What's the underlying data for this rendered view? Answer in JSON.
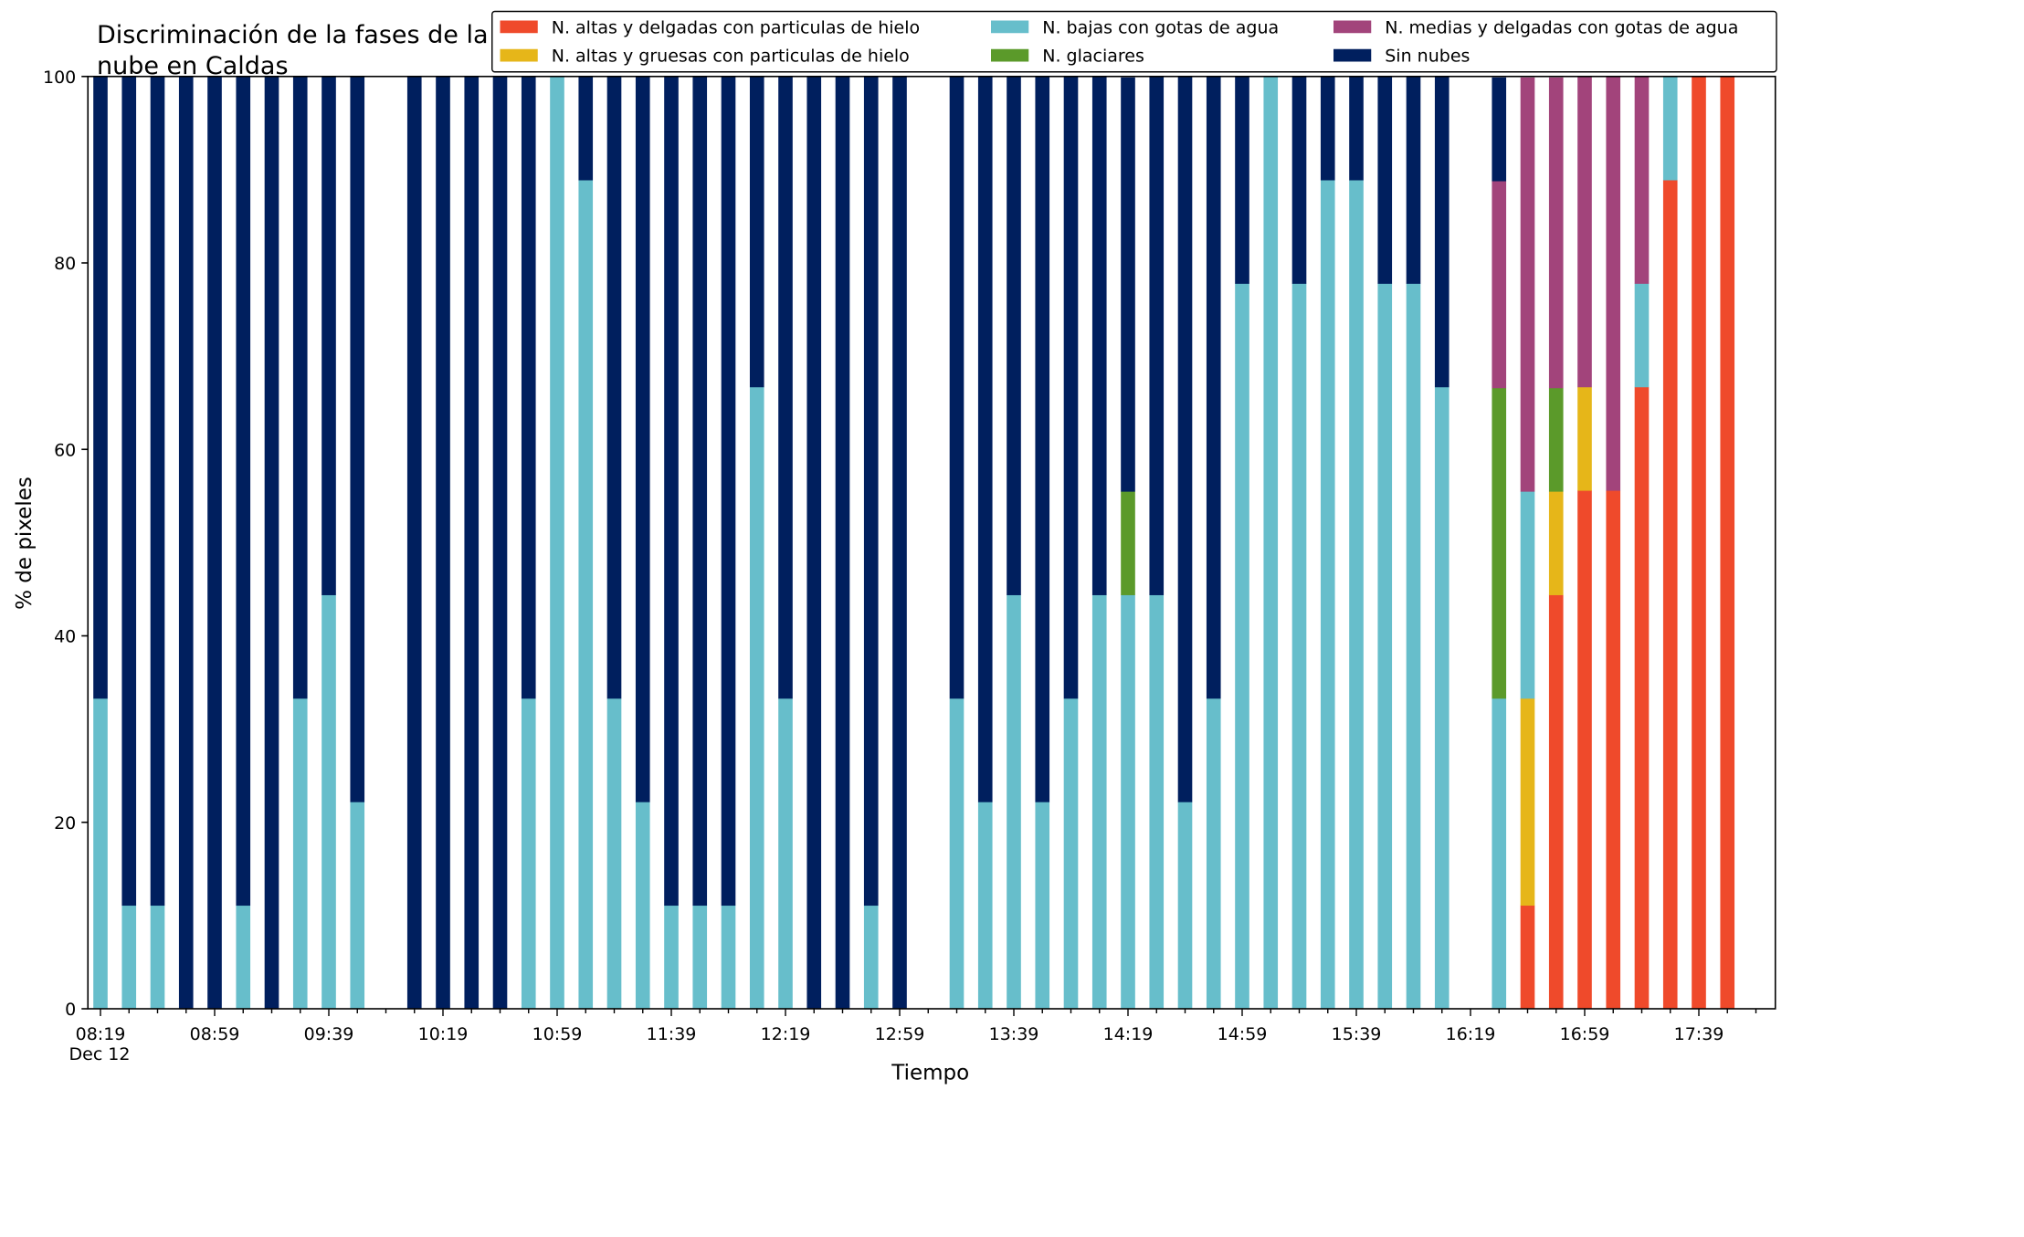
{
  "chart_data": {
    "type": "bar",
    "stacked": true,
    "title": "Discriminación de la fases de la\nnube en Caldas",
    "xlabel": "Tiempo",
    "ylabel": "% de pixeles",
    "ylim": [
      0,
      100
    ],
    "yticks": [
      0,
      20,
      40,
      60,
      80,
      100
    ],
    "xlim_minutes": [
      0,
      585
    ],
    "x_axis_start": "08:19",
    "x_axis_date": "Dec 12",
    "xtick_labels": [
      "08:19",
      "08:59",
      "09:39",
      "10:19",
      "10:59",
      "11:39",
      "12:19",
      "12:59",
      "13:39",
      "14:19",
      "14:59",
      "15:39",
      "16:19",
      "16:59",
      "17:39"
    ],
    "xtick_label_minutes": [
      0,
      40,
      80,
      120,
      160,
      200,
      240,
      280,
      320,
      360,
      400,
      440,
      480,
      520,
      560
    ],
    "minor_tick_step_minutes": 10,
    "grid": false,
    "legend_position": "top-right",
    "legend_columns": 3,
    "series": [
      {
        "name": "N. altas y delgadas con particulas de hielo",
        "color": "#ef4a2b"
      },
      {
        "name": "N. altas y gruesas con particulas de hielo",
        "color": "#e6b619"
      },
      {
        "name": "N. bajas con gotas de agua",
        "color": "#67becb"
      },
      {
        "name": "N. glaciares",
        "color": "#5b9a2a"
      },
      {
        "name": "N. medias y delgadas con gotas de agua",
        "color": "#a2447b"
      },
      {
        "name": "Sin nubes",
        "color": "#001f5e"
      }
    ],
    "stack_order": [
      "N. altas y delgadas con particulas de hielo",
      "N. altas y gruesas con particulas de hielo",
      "N. bajas con gotas de agua",
      "N. glaciares",
      "N. medias y delgadas con gotas de agua",
      "Sin nubes"
    ],
    "bars": [
      {
        "t": "08:19",
        "values": [
          0,
          0,
          33.3,
          0,
          0,
          66.7
        ]
      },
      {
        "t": "08:29",
        "values": [
          0,
          0,
          11.1,
          0,
          0,
          88.9
        ]
      },
      {
        "t": "08:39",
        "values": [
          0,
          0,
          11.1,
          0,
          0,
          88.9
        ]
      },
      {
        "t": "08:49",
        "values": [
          0,
          0,
          0,
          0,
          0,
          100
        ]
      },
      {
        "t": "08:59",
        "values": [
          0,
          0,
          0,
          0,
          0,
          100
        ]
      },
      {
        "t": "09:09",
        "values": [
          0,
          0,
          11.1,
          0,
          0,
          88.9
        ]
      },
      {
        "t": "09:19",
        "values": [
          0,
          0,
          0,
          0,
          0,
          100
        ]
      },
      {
        "t": "09:29",
        "values": [
          0,
          0,
          33.3,
          0,
          0,
          66.7
        ]
      },
      {
        "t": "09:39",
        "values": [
          0,
          0,
          44.4,
          0,
          0,
          55.6
        ]
      },
      {
        "t": "09:49",
        "values": [
          0,
          0,
          22.2,
          0,
          0,
          77.8
        ]
      },
      {
        "t": "10:09",
        "values": [
          0,
          0,
          0,
          0,
          0,
          100
        ]
      },
      {
        "t": "10:19",
        "values": [
          0,
          0,
          0,
          0,
          0,
          100
        ]
      },
      {
        "t": "10:29",
        "values": [
          0,
          0,
          0,
          0,
          0,
          100
        ]
      },
      {
        "t": "10:39",
        "values": [
          0,
          0,
          0,
          0,
          0,
          100
        ]
      },
      {
        "t": "10:49",
        "values": [
          0,
          0,
          33.3,
          0,
          0,
          66.7
        ]
      },
      {
        "t": "10:59",
        "values": [
          0,
          0,
          100,
          0,
          0,
          0
        ]
      },
      {
        "t": "11:09",
        "values": [
          0,
          0,
          88.9,
          0,
          0,
          11.1
        ]
      },
      {
        "t": "11:19",
        "values": [
          0,
          0,
          33.3,
          0,
          0,
          66.7
        ]
      },
      {
        "t": "11:29",
        "values": [
          0,
          0,
          22.2,
          0,
          0,
          77.8
        ]
      },
      {
        "t": "11:39",
        "values": [
          0,
          0,
          11.1,
          0,
          0,
          88.9
        ]
      },
      {
        "t": "11:49",
        "values": [
          0,
          0,
          11.1,
          0,
          0,
          88.9
        ]
      },
      {
        "t": "11:59",
        "values": [
          0,
          0,
          11.1,
          0,
          0,
          88.9
        ]
      },
      {
        "t": "12:09",
        "values": [
          0,
          0,
          66.7,
          0,
          0,
          33.3
        ]
      },
      {
        "t": "12:19",
        "values": [
          0,
          0,
          33.3,
          0,
          0,
          66.7
        ]
      },
      {
        "t": "12:29",
        "values": [
          0,
          0,
          0,
          0,
          0,
          100
        ]
      },
      {
        "t": "12:39",
        "values": [
          0,
          0,
          0,
          0,
          0,
          100
        ]
      },
      {
        "t": "12:49",
        "values": [
          0,
          0,
          11.1,
          0,
          0,
          88.9
        ]
      },
      {
        "t": "12:59",
        "values": [
          0,
          0,
          0,
          0,
          0,
          100
        ]
      },
      {
        "t": "13:19",
        "values": [
          0,
          0,
          33.3,
          0,
          0,
          66.7
        ]
      },
      {
        "t": "13:29",
        "values": [
          0,
          0,
          22.2,
          0,
          0,
          77.8
        ]
      },
      {
        "t": "13:39",
        "values": [
          0,
          0,
          44.4,
          0,
          0,
          55.6
        ]
      },
      {
        "t": "13:49",
        "values": [
          0,
          0,
          22.2,
          0,
          0,
          77.8
        ]
      },
      {
        "t": "13:59",
        "values": [
          0,
          0,
          33.3,
          0,
          0,
          66.7
        ]
      },
      {
        "t": "14:09",
        "values": [
          0,
          0,
          44.4,
          0,
          0,
          55.6
        ]
      },
      {
        "t": "14:19",
        "values": [
          0,
          0,
          44.4,
          11.1,
          0,
          44.4
        ]
      },
      {
        "t": "14:29",
        "values": [
          0,
          0,
          44.4,
          0,
          0,
          55.6
        ]
      },
      {
        "t": "14:39",
        "values": [
          0,
          0,
          22.2,
          0,
          0,
          77.8
        ]
      },
      {
        "t": "14:49",
        "values": [
          0,
          0,
          33.3,
          0,
          0,
          66.7
        ]
      },
      {
        "t": "14:59",
        "values": [
          0,
          0,
          77.8,
          0,
          0,
          22.2
        ]
      },
      {
        "t": "15:09",
        "values": [
          0,
          0,
          100,
          0,
          0,
          0
        ]
      },
      {
        "t": "15:19",
        "values": [
          0,
          0,
          77.8,
          0,
          0,
          22.2
        ]
      },
      {
        "t": "15:29",
        "values": [
          0,
          0,
          88.9,
          0,
          0,
          11.1
        ]
      },
      {
        "t": "15:39",
        "values": [
          0,
          0,
          88.9,
          0,
          0,
          11.1
        ]
      },
      {
        "t": "15:49",
        "values": [
          0,
          0,
          77.8,
          0,
          0,
          22.2
        ]
      },
      {
        "t": "15:59",
        "values": [
          0,
          0,
          77.8,
          0,
          0,
          22.2
        ]
      },
      {
        "t": "16:09",
        "values": [
          0,
          0,
          66.7,
          0,
          0,
          33.3
        ]
      },
      {
        "t": "16:29",
        "values": [
          0,
          0,
          33.3,
          33.3,
          22.2,
          11.1
        ]
      },
      {
        "t": "16:39",
        "values": [
          11.1,
          22.2,
          22.2,
          0,
          44.4,
          0
        ]
      },
      {
        "t": "16:49",
        "values": [
          44.4,
          11.1,
          0,
          11.1,
          33.3,
          0
        ]
      },
      {
        "t": "16:59",
        "values": [
          55.6,
          11.1,
          0,
          0,
          33.3,
          0
        ]
      },
      {
        "t": "17:09",
        "values": [
          55.6,
          0,
          0,
          0,
          44.4,
          0
        ]
      },
      {
        "t": "17:19",
        "values": [
          66.7,
          0,
          11.1,
          0,
          22.2,
          0
        ]
      },
      {
        "t": "17:29",
        "values": [
          88.9,
          0,
          11.1,
          0,
          0,
          0
        ]
      },
      {
        "t": "17:39",
        "values": [
          100,
          0,
          0,
          0,
          0,
          0
        ]
      },
      {
        "t": "17:49",
        "values": [
          100,
          0,
          0,
          0,
          0,
          0
        ]
      }
    ]
  }
}
